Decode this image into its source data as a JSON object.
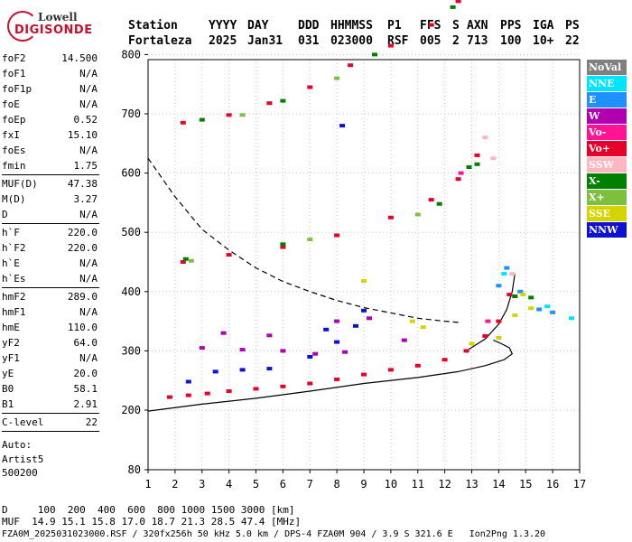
{
  "logo": {
    "line1": "Lowell",
    "line2": "DIGISONDE"
  },
  "header": {
    "row1": [
      "Station",
      "YYYY",
      "DAY",
      "DDD",
      "HHMMSS",
      "P1",
      "FFS",
      "S",
      "AXN",
      "PPS",
      "IGA",
      "PS"
    ],
    "row2": [
      "Fortaleza",
      "2025",
      "Jan31",
      "031",
      "023000",
      "RSF",
      "005",
      "2",
      "713",
      "100",
      "10+",
      "22"
    ]
  },
  "params": [
    {
      "label": "foF2",
      "value": "14.500"
    },
    {
      "label": "foF1",
      "value": "N/A"
    },
    {
      "label": "foF1p",
      "value": "N/A"
    },
    {
      "label": "foE",
      "value": "N/A"
    },
    {
      "label": "foEp",
      "value": "0.52"
    },
    {
      "label": "fxI",
      "value": "15.10"
    },
    {
      "label": "foEs",
      "value": "N/A"
    },
    {
      "label": "fmin",
      "value": "1.75"
    },
    {
      "label": "MUF(D)",
      "value": "47.38"
    },
    {
      "label": "M(D)",
      "value": "3.27"
    },
    {
      "label": "D",
      "value": "N/A"
    },
    {
      "label": "h`F",
      "value": "220.0"
    },
    {
      "label": "h`F2",
      "value": "220.0"
    },
    {
      "label": "h`E",
      "value": "N/A"
    },
    {
      "label": "h`Es",
      "value": "N/A"
    },
    {
      "label": "hmF2",
      "value": "289.0"
    },
    {
      "label": "hmF1",
      "value": "N/A"
    },
    {
      "label": "hmE",
      "value": "110.0"
    },
    {
      "label": "yF2",
      "value": "64.0"
    },
    {
      "label": "yF1",
      "value": "N/A"
    },
    {
      "label": "yE",
      "value": "20.0"
    },
    {
      "label": "B0",
      "value": "58.1"
    },
    {
      "label": "B1",
      "value": "2.91"
    },
    {
      "label": "C-level",
      "value": "22"
    }
  ],
  "auto": [
    "Auto:",
    "Artist5",
    "500200"
  ],
  "legend": [
    {
      "label": "NoVal",
      "color": "#808080"
    },
    {
      "label": "NNE",
      "color": "#00e5ff"
    },
    {
      "label": "E",
      "color": "#1e90ff"
    },
    {
      "label": "W",
      "color": "#b000b0"
    },
    {
      "label": "Vo-",
      "color": "#ff1493"
    },
    {
      "label": "Vo+",
      "color": "#e8002a"
    },
    {
      "label": "SSW",
      "color": "#ffb6c1"
    },
    {
      "label": "X-",
      "color": "#008000"
    },
    {
      "label": "X+",
      "color": "#7fbf3f"
    },
    {
      "label": "SSE",
      "color": "#d4d400"
    },
    {
      "label": "NNW",
      "color": "#1010d0"
    }
  ],
  "chart_data": {
    "type": "scatter",
    "xlim": [
      1,
      17
    ],
    "ylim": [
      80,
      900
    ],
    "x_ticks": [
      "1",
      "2",
      "3",
      "4",
      "5",
      "6",
      "7",
      "8",
      "9",
      "10",
      "11",
      "12",
      "13",
      "14",
      "15",
      "16",
      "17"
    ],
    "y_ticks": [
      "80",
      "200",
      "300",
      "400",
      "500",
      "600",
      "700",
      "800",
      "900"
    ],
    "grid": true,
    "series": [
      {
        "name": "Vo+",
        "color": "#e8002a",
        "points": [
          [
            1.8,
            222
          ],
          [
            2.5,
            225
          ],
          [
            3.2,
            228
          ],
          [
            4,
            232
          ],
          [
            5,
            236
          ],
          [
            6,
            240
          ],
          [
            7,
            245
          ],
          [
            8,
            252
          ],
          [
            9,
            260
          ],
          [
            10,
            268
          ],
          [
            11,
            275
          ],
          [
            12,
            285
          ],
          [
            12.8,
            300
          ],
          [
            13.5,
            325
          ],
          [
            14,
            350
          ],
          [
            14.4,
            395
          ],
          [
            2.3,
            450
          ],
          [
            4,
            462
          ],
          [
            6,
            475
          ],
          [
            8,
            495
          ],
          [
            10,
            525
          ],
          [
            11.5,
            555
          ],
          [
            12.5,
            590
          ],
          [
            13.2,
            630
          ],
          [
            2.3,
            685
          ],
          [
            4,
            698
          ],
          [
            5.5,
            718
          ],
          [
            7,
            745
          ],
          [
            8.5,
            782
          ],
          [
            10,
            815
          ],
          [
            11.5,
            850
          ],
          [
            12.5,
            890
          ]
        ]
      },
      {
        "name": "X-",
        "color": "#008000",
        "points": [
          [
            2.4,
            455
          ],
          [
            6,
            480
          ],
          [
            11.8,
            548
          ],
          [
            12.9,
            610
          ],
          [
            3,
            690
          ],
          [
            6,
            722
          ],
          [
            9.4,
            800
          ],
          [
            12.3,
            880
          ],
          [
            14.6,
            392
          ],
          [
            15.2,
            390
          ],
          [
            13.2,
            615
          ]
        ]
      },
      {
        "name": "X+",
        "color": "#7fbf3f",
        "points": [
          [
            2.6,
            452
          ],
          [
            7,
            488
          ],
          [
            11,
            530
          ],
          [
            4.5,
            698
          ],
          [
            8,
            760
          ]
        ]
      },
      {
        "name": "W",
        "color": "#b000b0",
        "points": [
          [
            3,
            305
          ],
          [
            4.5,
            302
          ],
          [
            6,
            300
          ],
          [
            7.2,
            295
          ],
          [
            8.3,
            298
          ],
          [
            3.8,
            330
          ],
          [
            5.5,
            326
          ],
          [
            8,
            350
          ],
          [
            9.2,
            355
          ],
          [
            10.5,
            318
          ]
        ]
      },
      {
        "name": "NNW",
        "color": "#1010d0",
        "points": [
          [
            2.5,
            248
          ],
          [
            3.5,
            265
          ],
          [
            4.5,
            268
          ],
          [
            5.5,
            270
          ],
          [
            7,
            290
          ],
          [
            8,
            315
          ],
          [
            8.7,
            342
          ],
          [
            9,
            368
          ],
          [
            7.6,
            336
          ],
          [
            8.2,
            680
          ]
        ]
      },
      {
        "name": "E",
        "color": "#1e90ff",
        "points": [
          [
            14,
            410
          ],
          [
            14.3,
            440
          ],
          [
            14.8,
            400
          ],
          [
            15.5,
            370
          ],
          [
            16,
            365
          ]
        ]
      },
      {
        "name": "NNE",
        "color": "#00e5ff",
        "points": [
          [
            14.2,
            430
          ],
          [
            15.8,
            375
          ],
          [
            16.7,
            355
          ]
        ]
      },
      {
        "name": "SSE",
        "color": "#d4d400",
        "points": [
          [
            10.8,
            350
          ],
          [
            11.2,
            340
          ],
          [
            13,
            312
          ],
          [
            14,
            322
          ],
          [
            14.6,
            360
          ],
          [
            14.9,
            395
          ],
          [
            15.2,
            372
          ],
          [
            9,
            418
          ]
        ]
      },
      {
        "name": "SSW",
        "color": "#ffb6c1",
        "points": [
          [
            13.5,
            660
          ],
          [
            13.8,
            625
          ],
          [
            14.5,
            430
          ]
        ]
      },
      {
        "name": "Vo-",
        "color": "#ff1493",
        "points": [
          [
            12.6,
            600
          ],
          [
            13.6,
            350
          ]
        ]
      }
    ],
    "curves": [
      {
        "style": "solid",
        "points": [
          [
            1,
            198
          ],
          [
            3,
            210
          ],
          [
            5,
            220
          ],
          [
            7,
            232
          ],
          [
            9,
            245
          ],
          [
            11,
            255
          ],
          [
            12.5,
            265
          ],
          [
            13.5,
            275
          ],
          [
            14.2,
            285
          ],
          [
            14.5,
            295
          ],
          [
            14.4,
            305
          ],
          [
            14.1,
            312
          ],
          [
            13.8,
            318
          ]
        ]
      },
      {
        "style": "solid",
        "points": [
          [
            12.8,
            300
          ],
          [
            13.5,
            320
          ],
          [
            14,
            345
          ],
          [
            14.3,
            370
          ],
          [
            14.5,
            400
          ],
          [
            14.6,
            430
          ]
        ]
      },
      {
        "style": "dashed",
        "points": [
          [
            1,
            625
          ],
          [
            2,
            560
          ],
          [
            3,
            505
          ],
          [
            4,
            470
          ],
          [
            5,
            440
          ],
          [
            6,
            417
          ],
          [
            7,
            400
          ],
          [
            8,
            385
          ],
          [
            9,
            373
          ],
          [
            10,
            364
          ],
          [
            11,
            355
          ],
          [
            12,
            350
          ],
          [
            12.5,
            348
          ]
        ]
      }
    ]
  },
  "footer": {
    "row1": "D     100  200  400  600  800 1000 1500 3000 [km]",
    "row2": "MUF  14.9 15.1 15.8 17.0 18.7 21.3 28.5 47.4 [MHz]",
    "row3": "FZA0M_2025031023000.RSF / 320fx256h 50 kHz 5.0 km / DPS-4 FZA0M 904 / 3.9 S 321.6 E   Ion2Png 1.3.20"
  }
}
